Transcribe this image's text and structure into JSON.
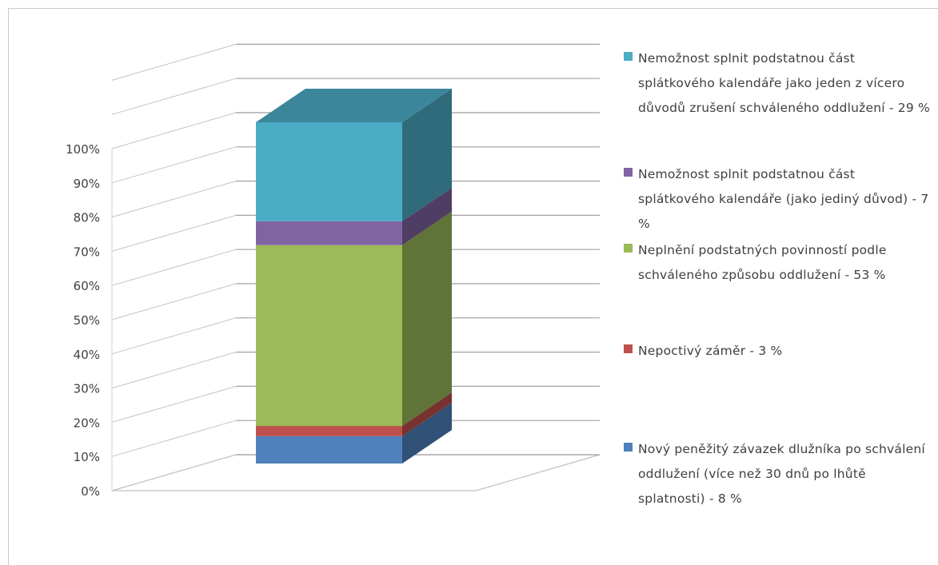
{
  "chart_data": {
    "type": "bar",
    "stacked": true,
    "three_d": true,
    "percent_stacked": true,
    "categories": [
      ""
    ],
    "ylim": [
      0,
      100
    ],
    "y_ticks": [
      "0%",
      "10%",
      "20%",
      "30%",
      "40%",
      "50%",
      "60%",
      "70%",
      "80%",
      "90%",
      "100%"
    ],
    "grid": true,
    "legend_position": "right",
    "series": [
      {
        "name": "Nový peněžitý závazek dlužníka po schválení oddlužení (více než 30 dnů po lhůtě splatnosti) - 8 %",
        "values": [
          8
        ],
        "color": "#4f81bd"
      },
      {
        "name": "Nepoctivý záměr - 3 %",
        "values": [
          3
        ],
        "color": "#c0504d"
      },
      {
        "name": "Neplnění podstatných povinností podle schváleného způsobu oddlužení - 53 %",
        "values": [
          53
        ],
        "color": "#9bbb59"
      },
      {
        "name": "Nemožnost splnit podstatnou část splátkového kalendáře (jako jediný důvod) - 7 %",
        "values": [
          7
        ],
        "color": "#8064a2"
      },
      {
        "name": "Nemožnost splnit podstatnou část splátkového kalendáře jako jeden z vícero důvodů zrušení schváleného oddlužení - 29 %",
        "values": [
          29
        ],
        "color": "#4bacc6"
      }
    ]
  }
}
